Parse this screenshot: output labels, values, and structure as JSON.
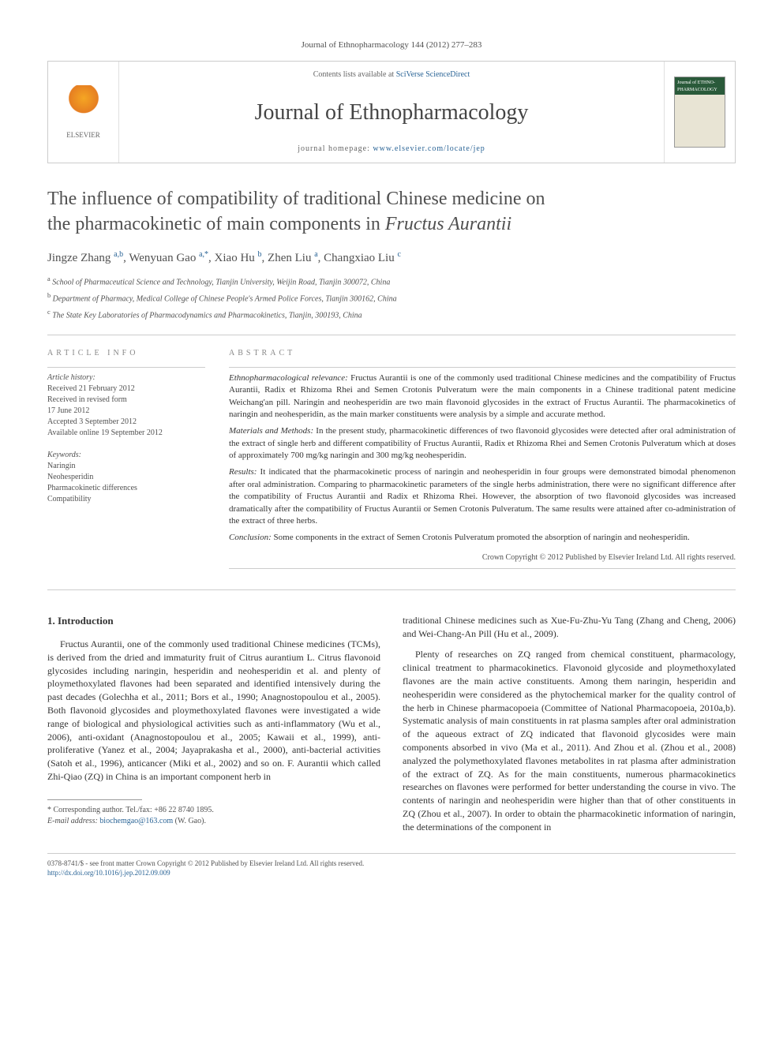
{
  "journal_ref": "Journal of Ethnopharmacology 144 (2012) 277–283",
  "header": {
    "contents_prefix": "Contents lists available at ",
    "contents_link": "SciVerse ScienceDirect",
    "journal_title": "Journal of Ethnopharmacology",
    "homepage_prefix": "journal homepage: ",
    "homepage_link": "www.elsevier.com/locate/jep",
    "elsevier_label": "ELSEVIER",
    "cover_text": "Journal of ETHNO-PHARMACOLOGY"
  },
  "title_line1": "The influence of compatibility of traditional Chinese medicine on",
  "title_line2_prefix": "the pharmacokinetic of main components in ",
  "title_line2_italic": "Fructus Aurantii",
  "authors_html": "Jingze Zhang <sup>a,b</sup>, Wenyuan Gao <sup>a,*</sup>, Xiao Hu <sup>b</sup>, Zhen Liu <sup>a</sup>, Changxiao Liu <sup>c</sup>",
  "affiliations": [
    {
      "sup": "a",
      "text": " School of Pharmaceutical Science and Technology, Tianjin University, Weijin Road, Tianjin 300072, China"
    },
    {
      "sup": "b",
      "text": " Department of Pharmacy, Medical College of Chinese People's Armed Police Forces, Tianjin 300162, China"
    },
    {
      "sup": "c",
      "text": " The State Key Laboratories of Pharmacodynamics and Pharmacokinetics, Tianjin, 300193, China"
    }
  ],
  "info": {
    "heading": "ARTICLE INFO",
    "history_label": "Article history:",
    "history": [
      "Received 21 February 2012",
      "Received in revised form",
      "17 June 2012",
      "Accepted 3 September 2012",
      "Available online 19 September 2012"
    ],
    "keywords_label": "Keywords:",
    "keywords": [
      "Naringin",
      "Neohesperidin",
      "Pharmacokinetic differences",
      "Compatibility"
    ]
  },
  "abstract": {
    "heading": "ABSTRACT",
    "p1_label": "Ethnopharmacological relevance:",
    "p1": " Fructus Aurantii is one of the commonly used traditional Chinese medicines and the compatibility of Fructus Aurantii, Radix et Rhizoma Rhei and Semen Crotonis Pulveratum were the main components in a Chinese traditional patent medicine Weichang'an pill. Naringin and neohesperidin are two main flavonoid glycosides in the extract of Fructus Aurantii. The pharmacokinetics of naringin and neohesperidin, as the main marker constituents were analysis by a simple and accurate method.",
    "p2_label": "Materials and Methods:",
    "p2": " In the present study, pharmacokinetic differences of two flavonoid glycosides were detected after oral administration of the extract of single herb and different compatibility of Fructus Aurantii, Radix et Rhizoma Rhei and Semen Crotonis Pulveratum which at doses of approximately 700 mg/kg naringin and 300 mg/kg neohesperidin.",
    "p3_label": "Results:",
    "p3": " It indicated that the pharmacokinetic process of naringin and neohesperidin in four groups were demonstrated bimodal phenomenon after oral administration. Comparing to pharmacokinetic parameters of the single herbs administration, there were no significant difference after the compatibility of Fructus Aurantii and Radix et Rhizoma Rhei. However, the absorption of two flavonoid glycosides was increased dramatically after the compatibility of Fructus Aurantii or Semen Crotonis Pulveratum. The same results were attained after co-administration of the extract of three herbs.",
    "p4_label": "Conclusion:",
    "p4": " Some components in the extract of Semen Crotonis Pulveratum promoted the absorption of naringin and neohesperidin.",
    "copyright": "Crown Copyright © 2012 Published by Elsevier Ireland Ltd. All rights reserved."
  },
  "body": {
    "section_heading": "1.  Introduction",
    "col1_p1": "Fructus Aurantii, one of the commonly used traditional Chinese medicines (TCMs), is derived from the dried and immaturity fruit of Citrus aurantium L. Citrus flavonoid glycosides including naringin, hesperidin and neohesperidin et al. and plenty of ploymethoxylated flavones had been separated and identified intensively during the past decades (Golechha et al., 2011; Bors et al., 1990; Anagnostopoulou et al., 2005). Both flavonoid glycosides and ploymethoxylated flavones were investigated a wide range of biological and physiological activities such as anti-inflammatory (Wu et al., 2006), anti-oxidant (Anagnostopoulou et al., 2005; Kawaii et al., 1999), anti-proliferative (Yanez et al., 2004; Jayaprakasha et al., 2000), anti-bacterial activities (Satoh et al., 1996), anticancer (Miki et al., 2002) and so on. F. Aurantii which called Zhi-Qiao (ZQ) in China is an important component herb in",
    "col2_p1": "traditional Chinese medicines such as Xue-Fu-Zhu-Yu Tang (Zhang and Cheng, 2006) and Wei-Chang-An Pill (Hu et al., 2009).",
    "col2_p2": "Plenty of researches on ZQ ranged from chemical constituent, pharmacology, clinical treatment to pharmacokinetics. Flavonoid glycoside and ploymethoxylated flavones are the main active constituents. Among them naringin, hesperidin and neohesperidin were considered as the phytochemical marker for the quality control of the herb in Chinese pharmacopoeia (Committee of National Pharmacopoeia, 2010a,b). Systematic analysis of main constituents in rat plasma samples after oral administration of the aqueous extract of ZQ indicated that flavonoid glycosides were main components absorbed in vivo (Ma et al., 2011). And Zhou et al. (Zhou et al., 2008) analyzed the polymethoxylated flavones metabolites in rat plasma after administration of the extract of ZQ. As for the main constituents, numerous pharmacokinetics researches on flavones were performed for better understanding the course in vivo. The contents of naringin and neohesperidin were higher than that of other constituents in ZQ (Zhou et al., 2007). In order to obtain the pharmacokinetic information of naringin, the determinations of the component in"
  },
  "footnote": {
    "corr": "* Corresponding author. Tel./fax: +86 22 8740 1895.",
    "email_label": "E-mail address: ",
    "email": "biochemgao@163.com",
    "email_suffix": " (W. Gao)."
  },
  "footer": {
    "line1": "0378-8741/$ - see front matter Crown Copyright © 2012 Published by Elsevier Ireland Ltd. All rights reserved.",
    "line2": "http://dx.doi.org/10.1016/j.jep.2012.09.009"
  },
  "colors": {
    "link": "#2a6496",
    "text": "#505050",
    "border": "#cccccc"
  }
}
